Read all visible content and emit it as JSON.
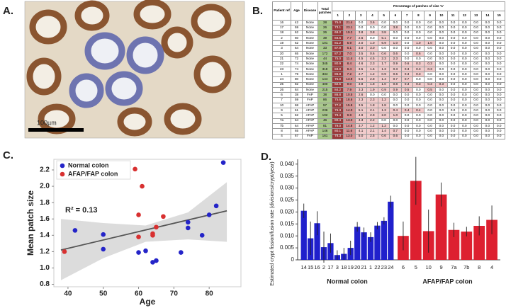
{
  "panel_labels": [
    "A.",
    "B.",
    "C.",
    "D."
  ],
  "figure_a": {
    "scale_label": "100µm"
  },
  "table": {
    "headers": [
      "Patient ref",
      "Age",
      "Disease",
      "Total patches"
    ],
    "group_header": "Percentage of patches of size 'n'",
    "size_columns": [
      1,
      2,
      3,
      4,
      5,
      6,
      7,
      8,
      9,
      10,
      11,
      12,
      13,
      14,
      15
    ],
    "rows": [
      [
        "16",
        "42",
        "None",
        "28",
        "75.0",
        "21.4",
        "0.0",
        "3.6",
        "0.0",
        "0.0",
        "0.0",
        "0.0",
        "0.0",
        "0.0",
        "0.0",
        "0.0",
        "0.0",
        "0.0",
        "0.0"
      ],
      [
        "17",
        "59",
        "None",
        "26",
        "73.1",
        "23.1",
        "0.0",
        "0.0",
        "0.0",
        "3.8",
        "0.0",
        "0.0",
        "0.0",
        "0.0",
        "0.0",
        "0.0",
        "0.0",
        "0.0",
        "0.0"
      ],
      [
        "18",
        "62",
        "None",
        "26",
        "69.2",
        "19.2",
        "3.8",
        "3.8",
        "3.8",
        "0.0",
        "0.0",
        "0.0",
        "0.0",
        "0.0",
        "0.0",
        "0.0",
        "0.0",
        "0.0",
        "0.0"
      ],
      [
        "2",
        "60",
        "None",
        "39",
        "84.6",
        "7.7",
        "2.6",
        "0.0",
        "5.1",
        "0.0",
        "0.0",
        "0.0",
        "0.0",
        "0.0",
        "0.0",
        "0.0",
        "0.0",
        "0.0",
        "0.0"
      ],
      [
        "19",
        "62",
        "None",
        "101",
        "81.2",
        "5.9",
        "2.0",
        "1.0",
        "6.9",
        "1.0",
        "0.0",
        "1.0",
        "1.0",
        "0.0",
        "0.0",
        "0.0",
        "0.0",
        "0.0",
        "0.0"
      ],
      [
        "3",
        "64",
        "None",
        "33",
        "87.9",
        "6.1",
        "3.0",
        "3.0",
        "0.0",
        "0.0",
        "0.0",
        "0.0",
        "0.0",
        "0.0",
        "0.0",
        "0.0",
        "0.0",
        "0.0",
        "0.0"
      ],
      [
        "20",
        "65",
        "None",
        "172",
        "87.2",
        "7.0",
        "3.5",
        "0.6",
        "0.6",
        "0.6",
        "0.0",
        "0.6",
        "0.0",
        "0.0",
        "0.0",
        "0.0",
        "0.0",
        "0.0",
        "0.0"
      ],
      [
        "21",
        "72",
        "None",
        "44",
        "75.0",
        "11.4",
        "4.5",
        "4.5",
        "2.3",
        "2.3",
        "0.0",
        "0.0",
        "0.0",
        "0.0",
        "0.0",
        "0.0",
        "0.0",
        "0.0",
        "0.0"
      ],
      [
        "22",
        "74",
        "None",
        "345",
        "80.9",
        "8.4",
        "4.6",
        "2.3",
        "1.7",
        "0.9",
        "0.6",
        "0.3",
        "0.3",
        "0.0",
        "0.0",
        "0.0",
        "0.0",
        "0.0",
        "0.0"
      ],
      [
        "23",
        "74",
        "None",
        "318",
        "83.0",
        "9.4",
        "3.5",
        "1.6",
        "1.3",
        "0.3",
        "0.3",
        "0.3",
        "0.3",
        "0.0",
        "0.0",
        "0.0",
        "0.0",
        "0.0",
        "0.0"
      ],
      [
        "1",
        "79",
        "None",
        "334",
        "86.8",
        "7.2",
        "2.7",
        "1.2",
        "0.9",
        "0.6",
        "0.3",
        "0.3",
        "0.0",
        "0.0",
        "0.0",
        "0.0",
        "0.0",
        "0.0",
        "0.0"
      ],
      [
        "24",
        "80",
        "None",
        "144",
        "75.0",
        "13.9",
        "5.6",
        "2.8",
        "1.4",
        "0.7",
        "0.7",
        "0.0",
        "0.0",
        "0.0",
        "0.0",
        "0.0",
        "0.0",
        "0.0",
        "0.0"
      ],
      [
        "25",
        "82",
        "None",
        "400",
        "82.5",
        "9.0",
        "3.8",
        "1.8",
        "1.0",
        "0.8",
        "0.3",
        "0.3",
        "0.3",
        "0.3",
        "0.0",
        "0.0",
        "0.0",
        "0.0",
        "0.0"
      ],
      [
        "26",
        "84",
        "None",
        "215",
        "84.2",
        "7.9",
        "3.3",
        "1.9",
        "0.9",
        "0.9",
        "0.5",
        "0.0",
        "0.5",
        "0.0",
        "0.0",
        "0.0",
        "0.0",
        "0.0",
        "0.0"
      ],
      [
        "6",
        "38",
        "FAP",
        "38",
        "86.8",
        "10.5",
        "2.6",
        "0.0",
        "0.0",
        "0.0",
        "0.0",
        "0.0",
        "0.0",
        "0.0",
        "0.0",
        "0.0",
        "0.0",
        "0.0",
        "0.0"
      ],
      [
        "7",
        "59",
        "FAP",
        "86",
        "75.6",
        "18.6",
        "2.3",
        "2.3",
        "1.2",
        "0.0",
        "0.0",
        "0.0",
        "0.0",
        "0.0",
        "0.0",
        "0.0",
        "0.0",
        "0.0",
        "0.0"
      ],
      [
        "10",
        "68",
        "AFAP",
        "57",
        "77.2",
        "15.8",
        "3.5",
        "1.8",
        "1.8",
        "0.0",
        "0.0",
        "0.0",
        "0.0",
        "0.0",
        "0.0",
        "0.0",
        "0.0",
        "0.0",
        "0.0"
      ],
      [
        "9",
        "61",
        "AFAP",
        "236",
        "76.3",
        "14.0",
        "5.1",
        "2.1",
        "1.3",
        "0.4",
        "0.4",
        "0.4",
        "0.0",
        "0.0",
        "0.0",
        "0.0",
        "0.0",
        "0.0",
        "0.0"
      ],
      [
        "5",
        "62",
        "AFAP",
        "102",
        "79.4",
        "9.8",
        "4.9",
        "2.9",
        "2.0",
        "1.0",
        "0.0",
        "0.0",
        "0.0",
        "0.0",
        "0.0",
        "0.0",
        "0.0",
        "0.0",
        "0.0"
      ],
      [
        "7a",
        "64",
        "AFAP",
        "46",
        "80.4",
        "13.0",
        "4.3",
        "2.2",
        "0.0",
        "0.0",
        "0.0",
        "0.0",
        "0.0",
        "0.0",
        "0.0",
        "0.0",
        "0.0",
        "0.0",
        "0.0"
      ],
      [
        "7b",
        "64",
        "AFAP",
        "81",
        "79.0",
        "14.8",
        "3.7",
        "1.2",
        "1.2",
        "0.0",
        "0.0",
        "0.0",
        "0.0",
        "0.0",
        "0.0",
        "0.0",
        "0.0",
        "0.0",
        "0.0"
      ],
      [
        "8",
        "65",
        "AFAP",
        "146",
        "80.1",
        "11.6",
        "4.1",
        "2.1",
        "1.4",
        "0.7",
        "0.0",
        "0.0",
        "0.0",
        "0.0",
        "0.0",
        "0.0",
        "0.0",
        "0.0",
        "0.0"
      ],
      [
        "4",
        "67",
        "FAP",
        "161",
        "78.3",
        "13.0",
        "5.0",
        "2.5",
        "0.6",
        "0.6",
        "0.0",
        "0.0",
        "0.0",
        "0.0",
        "0.0",
        "0.0",
        "0.0",
        "0.0",
        "0.0"
      ]
    ]
  },
  "chart_data": [
    {
      "type": "scatter",
      "x_label": "Age",
      "y_label": "Mean patch size",
      "annotation": "R² = 0.13",
      "legend": "upper left",
      "grid": false,
      "xlim": [
        36,
        89
      ],
      "ylim": [
        0.77,
        2.33
      ],
      "xticks": [
        40,
        50,
        60,
        70,
        80
      ],
      "yticks": [
        0.8,
        {
          "value": 1,
          "label": "1.0"
        },
        1.2,
        1.4,
        1.6,
        1.8,
        {
          "value": 2,
          "label": "2.0"
        },
        2.2
      ],
      "series": [
        {
          "name": "Normal colon",
          "color": "#2424c8",
          "x": [
            42,
            50,
            50,
            60,
            62,
            64,
            65,
            72,
            74,
            74,
            78,
            80,
            82,
            84
          ],
          "values": [
            1.46,
            1.41,
            1.23,
            1.19,
            1.21,
            1.07,
            1.09,
            1.19,
            1.49,
            1.56,
            1.4,
            1.65,
            1.76,
            2.29
          ]
        },
        {
          "name": "AFAP/FAP colon",
          "color": "#d83030",
          "x": [
            39,
            59,
            60,
            60,
            61,
            64,
            64,
            65,
            67
          ],
          "values": [
            1.2,
            2.21,
            1.38,
            1.65,
            2.0,
            1.4,
            1.42,
            1.5,
            1.63
          ]
        }
      ],
      "trend_line": {
        "x": [
          38,
          85
        ],
        "y": [
          1.22,
          1.7
        ],
        "color": "#555555"
      },
      "confidence_band": {
        "x": [
          38,
          50,
          62,
          74,
          85
        ],
        "lower": [
          0.85,
          1.12,
          1.32,
          1.35,
          1.32
        ],
        "upper": [
          1.6,
          1.55,
          1.52,
          1.68,
          2.05
        ],
        "color": "#dcdcdc"
      }
    },
    {
      "type": "bar",
      "y_label": "Estimated crypt fission/fusion rate (divisions/crypt/year)",
      "ylim": [
        0,
        0.042
      ],
      "yticks": [
        0,
        0.005,
        {
          "value": 0.01,
          "label": "0.010"
        },
        0.015,
        {
          "value": 0.02,
          "label": "0.020"
        },
        0.025,
        {
          "value": 0.03,
          "label": "0.030"
        },
        0.035,
        {
          "value": 0.04,
          "label": "0.040"
        }
      ],
      "series": [
        {
          "name": "Normal colon",
          "color": "#2020cc",
          "categories": [
            "14",
            "15",
            "16",
            "2",
            "17",
            "3",
            "18",
            "19",
            "20",
            "21",
            "1",
            "22",
            "23",
            "24"
          ],
          "values": [
            0.0205,
            0.009,
            0.0153,
            0.0053,
            0.007,
            0.002,
            0.0025,
            0.005,
            0.0138,
            0.0115,
            0.0095,
            0.0143,
            0.0163,
            0.0243
          ],
          "errors": [
            0.003,
            0.007,
            0.005,
            0.0065,
            0.004,
            0.002,
            0.0025,
            0.003,
            0.002,
            0.002,
            0.002,
            0.0015,
            0.0015,
            0.0025
          ]
        },
        {
          "name": "AFAP/FAP colon",
          "color": "#dd2030",
          "categories": [
            "6",
            "5",
            "10",
            "9",
            "7a",
            "7b",
            "8",
            "4"
          ],
          "values": [
            0.01,
            0.033,
            0.012,
            0.0273,
            0.0125,
            0.0118,
            0.0142,
            0.0167
          ],
          "errors": [
            0.006,
            0.01,
            0.009,
            0.005,
            0.003,
            0.002,
            0.004,
            0.006
          ]
        }
      ]
    }
  ]
}
